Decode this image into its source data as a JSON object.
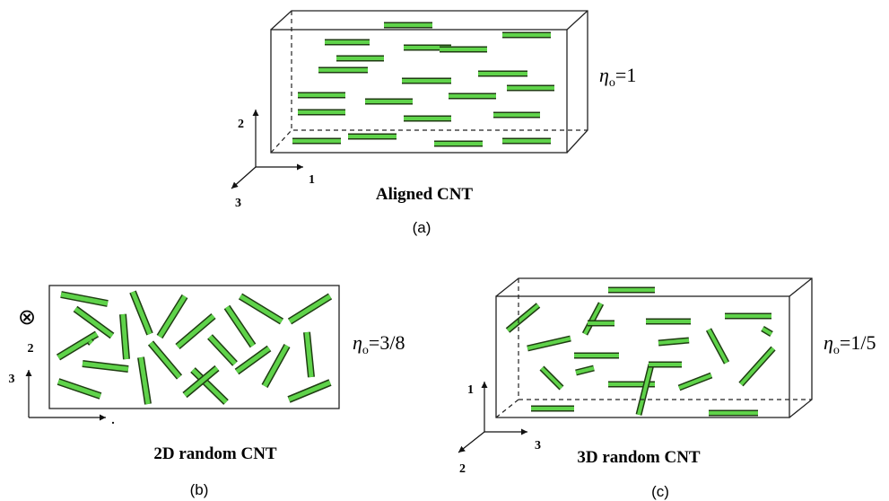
{
  "panels": [
    {
      "title": "Aligned CNT",
      "caption": "(a)",
      "axes": [
        "2",
        "1",
        "3"
      ],
      "orientation_factor": {
        "symbol": "η",
        "subscript": "o",
        "value": "=1"
      }
    },
    {
      "title": "2D random CNT",
      "caption": "(b)",
      "axes": [
        "⊗",
        "2",
        "3",
        "."
      ],
      "orientation_factor": {
        "symbol": "η",
        "subscript": "o",
        "value": "=3/8"
      }
    },
    {
      "title": "3D random CNT",
      "caption": "(c)",
      "axes": [
        "1",
        "3",
        "2"
      ],
      "orientation_factor": {
        "symbol": "η",
        "subscript": "o",
        "value": "=1/5"
      }
    }
  ]
}
